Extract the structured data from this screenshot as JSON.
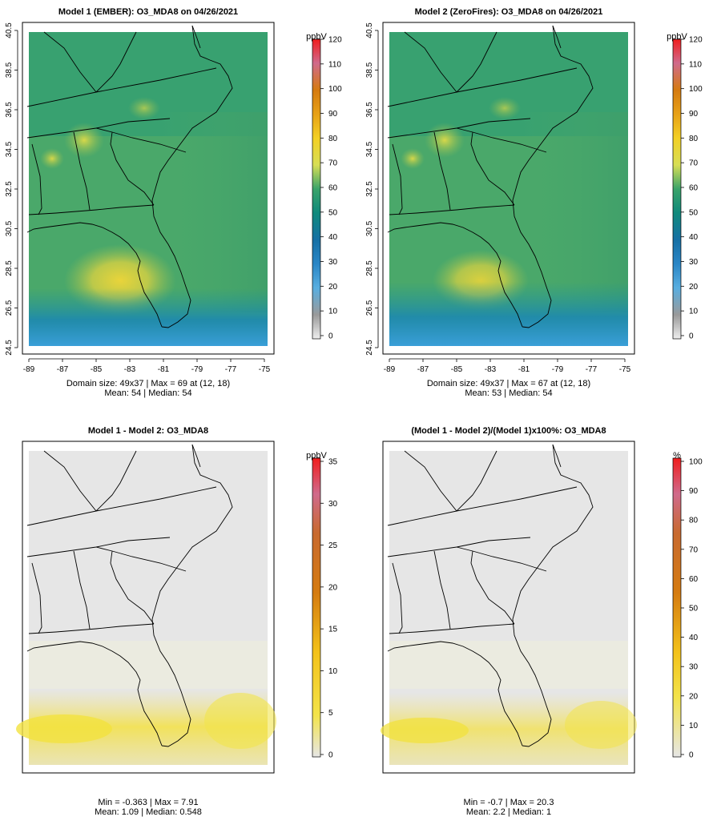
{
  "chart_data": [
    {
      "type": "heatmap",
      "title": "Model 1 (EMBER): O3_MDA8 on 04/26/2021",
      "x_ticks": [
        "-89",
        "-87",
        "-85",
        "-83",
        "-81",
        "-79",
        "-77",
        "-75"
      ],
      "y_ticks": [
        "24.5",
        "26.5",
        "28.5",
        "30.5",
        "32.5",
        "34.5",
        "36.5",
        "38.5",
        "40.5"
      ],
      "colorbar_unit": "ppbV",
      "colorbar_ticks": [
        "0",
        "10",
        "20",
        "30",
        "40",
        "50",
        "60",
        "70",
        "80",
        "90",
        "100",
        "110",
        "120"
      ],
      "colorbar_range": [
        0,
        120
      ],
      "stats_line1": "Domain size: 49x37 | Max = 69 at (12, 18)",
      "stats_line2": "Mean: 54 |  Median: 54",
      "domain_size": [
        49,
        37
      ],
      "max": 69,
      "max_at": [
        12,
        18
      ],
      "mean": 54,
      "median": 54
    },
    {
      "type": "heatmap",
      "title": "Model 2 (ZeroFires): O3_MDA8 on 04/26/2021",
      "x_ticks": [
        "-89",
        "-87",
        "-85",
        "-83",
        "-81",
        "-79",
        "-77",
        "-75"
      ],
      "y_ticks": [
        "24.5",
        "26.5",
        "28.5",
        "30.5",
        "32.5",
        "34.5",
        "36.5",
        "38.5",
        "40.5"
      ],
      "colorbar_unit": "ppbV",
      "colorbar_ticks": [
        "0",
        "10",
        "20",
        "30",
        "40",
        "50",
        "60",
        "70",
        "80",
        "90",
        "100",
        "110",
        "120"
      ],
      "colorbar_range": [
        0,
        120
      ],
      "stats_line1": "Domain size: 49x37 | Max = 67 at (12, 18)",
      "stats_line2": "Mean: 53 |  Median: 54",
      "domain_size": [
        49,
        37
      ],
      "max": 67,
      "max_at": [
        12,
        18
      ],
      "mean": 53,
      "median": 54
    },
    {
      "type": "heatmap",
      "title": "Model 1 - Model 2: O3_MDA8",
      "colorbar_unit": "ppbV",
      "colorbar_ticks": [
        "0",
        "5",
        "10",
        "15",
        "20",
        "25",
        "30",
        "35"
      ],
      "colorbar_range": [
        0,
        35
      ],
      "stats_line1": "Min = -0.363 | Max = 7.91",
      "stats_line2": "Mean: 1.09 |  Median: 0.548",
      "min": -0.363,
      "max": 7.91,
      "mean": 1.09,
      "median": 0.548
    },
    {
      "type": "heatmap",
      "title": "(Model 1 - Model 2)/(Model 1)x100%: O3_MDA8",
      "colorbar_unit": "%",
      "colorbar_ticks": [
        "0",
        "10",
        "20",
        "30",
        "40",
        "50",
        "60",
        "70",
        "80",
        "90",
        "100"
      ],
      "colorbar_range": [
        0,
        100
      ],
      "stats_line1": "Min = -0.7 | Max = 20.3",
      "stats_line2": "Mean: 2.2 |  Median: 1",
      "min": -0.7,
      "max": 20.3,
      "mean": 2.2,
      "median": 1
    }
  ]
}
